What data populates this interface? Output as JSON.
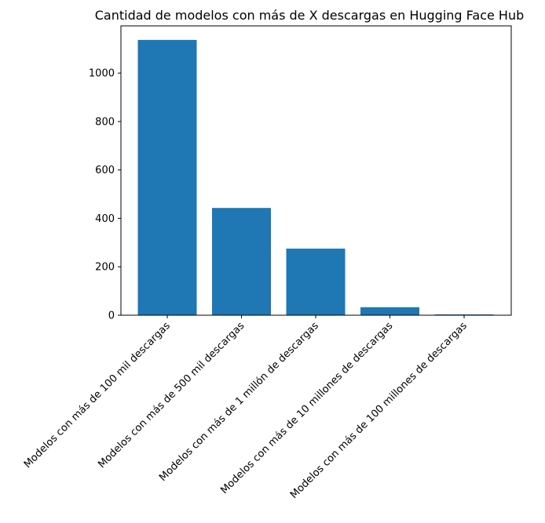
{
  "chart_data": {
    "type": "bar",
    "title": "Cantidad de modelos con más de X descargas en Hugging Face Hub",
    "xlabel": "",
    "ylabel": "",
    "categories": [
      "Modelos con más de 100 mil descargas",
      "Modelos con más de 500 mil descargas",
      "Modelos con más de 1 millón de  descargas",
      "Modelos con más de 10 millones de descargas",
      "Modelos con más de 100 millones de descargas"
    ],
    "values": [
      1137,
      443,
      275,
      33,
      3
    ],
    "ylim": [
      0,
      1195
    ],
    "yticks": [
      0,
      200,
      400,
      600,
      800,
      1000
    ],
    "bar_color": "#1f77b4",
    "grid": false,
    "legend": "none"
  }
}
